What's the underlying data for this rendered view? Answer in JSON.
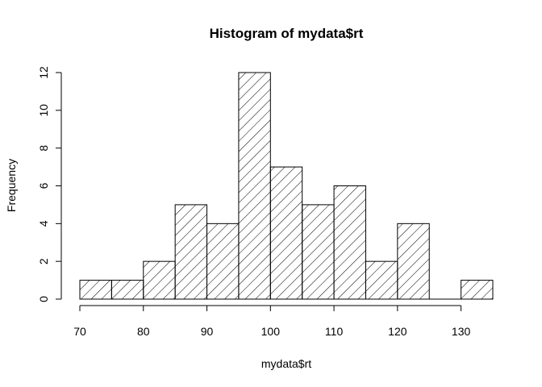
{
  "chart_data": {
    "type": "bar",
    "title": "Histogram of mydata$rt",
    "xlabel": "mydata$rt",
    "ylabel": "Frequency",
    "bins": [
      {
        "start": 70,
        "end": 75,
        "count": 1
      },
      {
        "start": 75,
        "end": 80,
        "count": 1
      },
      {
        "start": 80,
        "end": 85,
        "count": 2
      },
      {
        "start": 85,
        "end": 90,
        "count": 5
      },
      {
        "start": 90,
        "end": 95,
        "count": 4
      },
      {
        "start": 95,
        "end": 100,
        "count": 12
      },
      {
        "start": 100,
        "end": 105,
        "count": 7
      },
      {
        "start": 105,
        "end": 110,
        "count": 5
      },
      {
        "start": 110,
        "end": 115,
        "count": 6
      },
      {
        "start": 115,
        "end": 120,
        "count": 2
      },
      {
        "start": 120,
        "end": 125,
        "count": 4
      },
      {
        "start": 125,
        "end": 130,
        "count": 0
      },
      {
        "start": 130,
        "end": 135,
        "count": 1
      }
    ],
    "xlim": [
      70,
      135
    ],
    "ylim": [
      0,
      12
    ],
    "x_ticks": [
      70,
      80,
      90,
      100,
      110,
      120,
      130
    ],
    "y_ticks": [
      0,
      2,
      4,
      6,
      8,
      10,
      12
    ],
    "fill": "diagonal-hatch",
    "bar_color": "#000000",
    "background": "#ffffff",
    "grid": false
  }
}
